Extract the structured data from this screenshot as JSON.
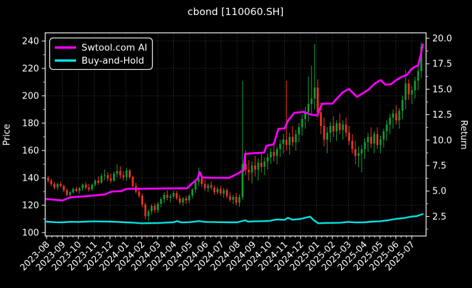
{
  "title": "cbond [110060.SH]",
  "legend": {
    "items": [
      {
        "label": "Swtool.com AI",
        "color": "#ff00ff"
      },
      {
        "label": "Buy-and-Hold",
        "color": "#00e6e6"
      }
    ]
  },
  "axes": {
    "left_label": "Price",
    "right_label": "Return",
    "left_ticks": [
      "240",
      "220",
      "200",
      "180",
      "160",
      "140",
      "120",
      "100"
    ],
    "right_ticks": [
      "20.0",
      "17.5",
      "15.0",
      "12.5",
      "10.0",
      "7.5",
      "5.0",
      "2.5"
    ],
    "x_ticks": [
      "2023-08",
      "2023-09",
      "2023-10",
      "2023-11",
      "2023-12",
      "2024-01",
      "2024-02",
      "2024-03",
      "2024-04",
      "2024-05",
      "2024-06",
      "2024-07",
      "2024-08",
      "2024-09",
      "2024-10",
      "2024-11",
      "2024-12",
      "2025-01",
      "2025-02",
      "2025-03",
      "2025-04",
      "2025-05",
      "2025-06",
      "2025-07"
    ]
  },
  "colors": {
    "background": "#000000",
    "foreground": "#ffffff",
    "grid": "rgba(255,255,255,0.38)",
    "up_candle": "#109b30",
    "down_candle": "#ee3322",
    "ai_line": "#ff00ff",
    "bh_line": "#00e6e6"
  },
  "chart_data": {
    "type": "candlestick+line",
    "title": "cbond [110060.SH]",
    "xlabel_ticks": [
      "2023-08",
      "2023-09",
      "2023-10",
      "2023-11",
      "2023-12",
      "2024-01",
      "2024-02",
      "2024-03",
      "2024-04",
      "2024-05",
      "2024-06",
      "2024-07",
      "2024-08",
      "2024-09",
      "2024-10",
      "2024-11",
      "2024-12",
      "2025-01",
      "2025-02",
      "2025-03",
      "2025-04",
      "2025-05",
      "2025-06",
      "2025-07"
    ],
    "left_axis": {
      "label": "Price",
      "ticks": [
        240,
        220,
        200,
        180,
        160,
        140,
        120,
        100
      ],
      "range_at_plot_edges": [
        97.5,
        246
      ]
    },
    "right_axis": {
      "label": "Return",
      "ticks": [
        20.0,
        17.5,
        15.0,
        12.5,
        10.0,
        7.5,
        5.0,
        2.5
      ]
    },
    "legend_position": "upper-left",
    "grid": true,
    "candles_per_month": 5,
    "candles_ohlc": [
      [
        140,
        141.5,
        136.5,
        138
      ],
      [
        138,
        139.5,
        134,
        135.5
      ],
      [
        135.5,
        137,
        131.5,
        133
      ],
      [
        133,
        136.5,
        131,
        135.5
      ],
      [
        135.5,
        137.5,
        133,
        134
      ],
      [
        134,
        135,
        129.5,
        131
      ],
      [
        131,
        132,
        126.5,
        127.5
      ],
      [
        127.5,
        130.5,
        126,
        129.5
      ],
      [
        129.5,
        133,
        128.5,
        132
      ],
      [
        132,
        133.5,
        129.5,
        130.5
      ],
      [
        130.5,
        133.5,
        128.5,
        132.5
      ],
      [
        132.5,
        136,
        130.5,
        135
      ],
      [
        135,
        137,
        131.5,
        133
      ],
      [
        133,
        135.5,
        130,
        131.5
      ],
      [
        131.5,
        136,
        130.5,
        135
      ],
      [
        135,
        139,
        133.5,
        138
      ],
      [
        138,
        141,
        135,
        136.5
      ],
      [
        136.5,
        143,
        135.5,
        141.5
      ],
      [
        141.5,
        146,
        138.5,
        142
      ],
      [
        142,
        144,
        137.5,
        139.5
      ],
      [
        139.5,
        143,
        136.5,
        138
      ],
      [
        138,
        144.5,
        137,
        143
      ],
      [
        143,
        150,
        140.5,
        145
      ],
      [
        145,
        148.5,
        139.5,
        142
      ],
      [
        142,
        145,
        138,
        140.5
      ],
      [
        140.5,
        147,
        138,
        145.5
      ],
      [
        145.5,
        146.5,
        139,
        140.5
      ],
      [
        140.5,
        141.5,
        132.5,
        134
      ],
      [
        134,
        136.5,
        128.5,
        130
      ],
      [
        130,
        133,
        125.5,
        127
      ],
      [
        127,
        128.5,
        118.5,
        120.5
      ],
      [
        120.5,
        122,
        109.5,
        112
      ],
      [
        112,
        117,
        108.5,
        115.5
      ],
      [
        115.5,
        121,
        113,
        119.5
      ],
      [
        119.5,
        121.5,
        114.5,
        116.5
      ],
      [
        116.5,
        122.5,
        114.5,
        121
      ],
      [
        121,
        126,
        118.5,
        124.5
      ],
      [
        124.5,
        129.5,
        121.5,
        127.5
      ],
      [
        127.5,
        131,
        123.5,
        125.5
      ],
      [
        125.5,
        128,
        122,
        126.5
      ],
      [
        126.5,
        130.5,
        124.5,
        129
      ],
      [
        129,
        130.5,
        123.5,
        125
      ],
      [
        125,
        127.5,
        120.5,
        122
      ],
      [
        122,
        126,
        119.5,
        125
      ],
      [
        125,
        127,
        121,
        123.5
      ],
      [
        123.5,
        128,
        121.5,
        127
      ],
      [
        127,
        132.5,
        125,
        131.5
      ],
      [
        131.5,
        139,
        129,
        137
      ],
      [
        137,
        147.5,
        134,
        139.5
      ],
      [
        139.5,
        141.5,
        133.5,
        135.5
      ],
      [
        135.5,
        138.5,
        130.5,
        132.5
      ],
      [
        132.5,
        136,
        129.5,
        134.5
      ],
      [
        134.5,
        137.5,
        131,
        133
      ],
      [
        133,
        134.5,
        127.5,
        129.5
      ],
      [
        129.5,
        133.5,
        128,
        132
      ],
      [
        132,
        134,
        127,
        128.5
      ],
      [
        128.5,
        132.5,
        125.5,
        131
      ],
      [
        131,
        132.5,
        125,
        126.5
      ],
      [
        126.5,
        129.5,
        122.5,
        124
      ],
      [
        124,
        127.5,
        121,
        126
      ],
      [
        126,
        129,
        120,
        122
      ],
      [
        122,
        128,
        119,
        126
      ],
      [
        126,
        211,
        124,
        150
      ],
      [
        150,
        160,
        142,
        146
      ],
      [
        146,
        153,
        138,
        144
      ],
      [
        144,
        152,
        136,
        149
      ],
      [
        149,
        156,
        141,
        146
      ],
      [
        146,
        154,
        138,
        151
      ],
      [
        151,
        158,
        144,
        148
      ],
      [
        148,
        155,
        142,
        152
      ],
      [
        152,
        158,
        146,
        155
      ],
      [
        155,
        162,
        150,
        159
      ],
      [
        159,
        165,
        152,
        156
      ],
      [
        156,
        163,
        150,
        161
      ],
      [
        161,
        168,
        155,
        165
      ],
      [
        165,
        172,
        158,
        168
      ],
      [
        168,
        211,
        160,
        164
      ],
      [
        164,
        173,
        157,
        170
      ],
      [
        170,
        178,
        163,
        166
      ],
      [
        166,
        175,
        160,
        172
      ],
      [
        172,
        180,
        166,
        177
      ],
      [
        177,
        186,
        171,
        183
      ],
      [
        183,
        192,
        176,
        188
      ],
      [
        188,
        214,
        181,
        194
      ],
      [
        194,
        222,
        186,
        198
      ],
      [
        198,
        238,
        190,
        206
      ],
      [
        206,
        212,
        184,
        188
      ],
      [
        188,
        195,
        172,
        178
      ],
      [
        178,
        184,
        163,
        168
      ],
      [
        168,
        177,
        158,
        173
      ],
      [
        173,
        181,
        166,
        178
      ],
      [
        178,
        185,
        170,
        174
      ],
      [
        174,
        182,
        167,
        180
      ],
      [
        180,
        187,
        172,
        175
      ],
      [
        175,
        182,
        168,
        179
      ],
      [
        179,
        184,
        170,
        173
      ],
      [
        173,
        178,
        164,
        167
      ],
      [
        167,
        172,
        158,
        161
      ],
      [
        161,
        167,
        150,
        156
      ],
      [
        156,
        163,
        148,
        158
      ],
      [
        158,
        164,
        144,
        161
      ],
      [
        161,
        169,
        154,
        166
      ],
      [
        166,
        173,
        159,
        170
      ],
      [
        170,
        177,
        162,
        165
      ],
      [
        165,
        174,
        158,
        172
      ],
      [
        172,
        177,
        161,
        164
      ],
      [
        164,
        171,
        158,
        168
      ],
      [
        168,
        176,
        162,
        174
      ],
      [
        174,
        182,
        167,
        179
      ],
      [
        179,
        187,
        172,
        184
      ],
      [
        184,
        190,
        176,
        187
      ],
      [
        187,
        193,
        179,
        182
      ],
      [
        182,
        191,
        176,
        189
      ],
      [
        189,
        200,
        183,
        197
      ],
      [
        197,
        219,
        190,
        209
      ],
      [
        209,
        212,
        197,
        201
      ],
      [
        201,
        207,
        194,
        204
      ],
      [
        204,
        214,
        198,
        211
      ],
      [
        211,
        221,
        204,
        218
      ],
      [
        218,
        239,
        213,
        236
      ]
    ],
    "series": [
      {
        "name": "Swtool.com AI",
        "color": "#ff00ff",
        "points_month_price": [
          [
            0,
            124.5
          ],
          [
            0.5,
            124
          ],
          [
            1.0,
            123.5
          ],
          [
            1.5,
            125.8
          ],
          [
            2.0,
            126.2
          ],
          [
            2.6,
            126.7
          ],
          [
            3.2,
            127.3
          ],
          [
            3.7,
            128
          ],
          [
            4.1,
            130
          ],
          [
            4.7,
            130.3
          ],
          [
            5.05,
            132
          ],
          [
            6,
            132
          ],
          [
            7,
            132.2
          ],
          [
            8,
            132.3
          ],
          [
            8.85,
            132.4
          ],
          [
            9.15,
            135.8
          ],
          [
            9.5,
            139.2
          ],
          [
            9.65,
            144.3
          ],
          [
            9.8,
            140.3
          ],
          [
            10.5,
            140
          ],
          [
            11.5,
            140
          ],
          [
            12.1,
            143.5
          ],
          [
            12.3,
            145
          ],
          [
            12.42,
            145.3
          ],
          [
            12.5,
            157.5
          ],
          [
            13,
            158
          ],
          [
            13.7,
            158.5
          ],
          [
            13.85,
            163.5
          ],
          [
            14.3,
            164.5
          ],
          [
            14.45,
            170
          ],
          [
            14.6,
            175.8
          ],
          [
            15,
            176.2
          ],
          [
            15.2,
            181.7
          ],
          [
            15.6,
            187.5
          ],
          [
            16.2,
            188.3
          ],
          [
            16.7,
            186
          ],
          [
            17.05,
            185.8
          ],
          [
            17.35,
            194.2
          ],
          [
            18,
            194.3
          ],
          [
            18.65,
            202.5
          ],
          [
            19.05,
            205
          ],
          [
            19.55,
            199.2
          ],
          [
            20.25,
            204.2
          ],
          [
            20.7,
            209.2
          ],
          [
            21.05,
            211.5
          ],
          [
            21.35,
            208
          ],
          [
            21.7,
            208.5
          ],
          [
            22.05,
            211.7
          ],
          [
            22.4,
            214
          ],
          [
            22.7,
            215.2
          ],
          [
            22.95,
            219
          ],
          [
            23.15,
            221
          ],
          [
            23.4,
            222
          ],
          [
            23.55,
            229
          ],
          [
            23.7,
            237.5
          ]
        ]
      },
      {
        "name": "Buy-and-Hold",
        "color": "#00e6e6",
        "points_month_price": [
          [
            0,
            108
          ],
          [
            0.5,
            107.6
          ],
          [
            1,
            107.5
          ],
          [
            1.5,
            107.9
          ],
          [
            2,
            107.8
          ],
          [
            2.5,
            108
          ],
          [
            3,
            108.2
          ],
          [
            3.5,
            108.1
          ],
          [
            4,
            108
          ],
          [
            4.5,
            107.8
          ],
          [
            5,
            107.5
          ],
          [
            5.5,
            107.2
          ],
          [
            6,
            106.8
          ],
          [
            6.5,
            106.9
          ],
          [
            7,
            107
          ],
          [
            7.5,
            107.3
          ],
          [
            8,
            107.5
          ],
          [
            8.2,
            108.4
          ],
          [
            8.5,
            107.4
          ],
          [
            9,
            107.6
          ],
          [
            9.6,
            108.4
          ],
          [
            10,
            107.8
          ],
          [
            10.5,
            107.7
          ],
          [
            11,
            107.6
          ],
          [
            11.5,
            107.5
          ],
          [
            12,
            107.5
          ],
          [
            12.5,
            109
          ],
          [
            12.7,
            108
          ],
          [
            13,
            108.2
          ],
          [
            13.5,
            108.3
          ],
          [
            14,
            108.5
          ],
          [
            14.5,
            109.6
          ],
          [
            15,
            109.3
          ],
          [
            15.2,
            110.8
          ],
          [
            15.5,
            109.4
          ],
          [
            16,
            110
          ],
          [
            16.6,
            111.7
          ],
          [
            16.8,
            109.4
          ],
          [
            17.1,
            106.8
          ],
          [
            17.5,
            107
          ],
          [
            18,
            107.1
          ],
          [
            18.5,
            107.2
          ],
          [
            19,
            107.8
          ],
          [
            19.5,
            107.4
          ],
          [
            20,
            107.5
          ],
          [
            20.5,
            108
          ],
          [
            21,
            108.3
          ],
          [
            21.5,
            109
          ],
          [
            22,
            110
          ],
          [
            22.5,
            110.6
          ],
          [
            23,
            111.7
          ],
          [
            23.3,
            112
          ],
          [
            23.7,
            113.5
          ]
        ]
      }
    ]
  }
}
